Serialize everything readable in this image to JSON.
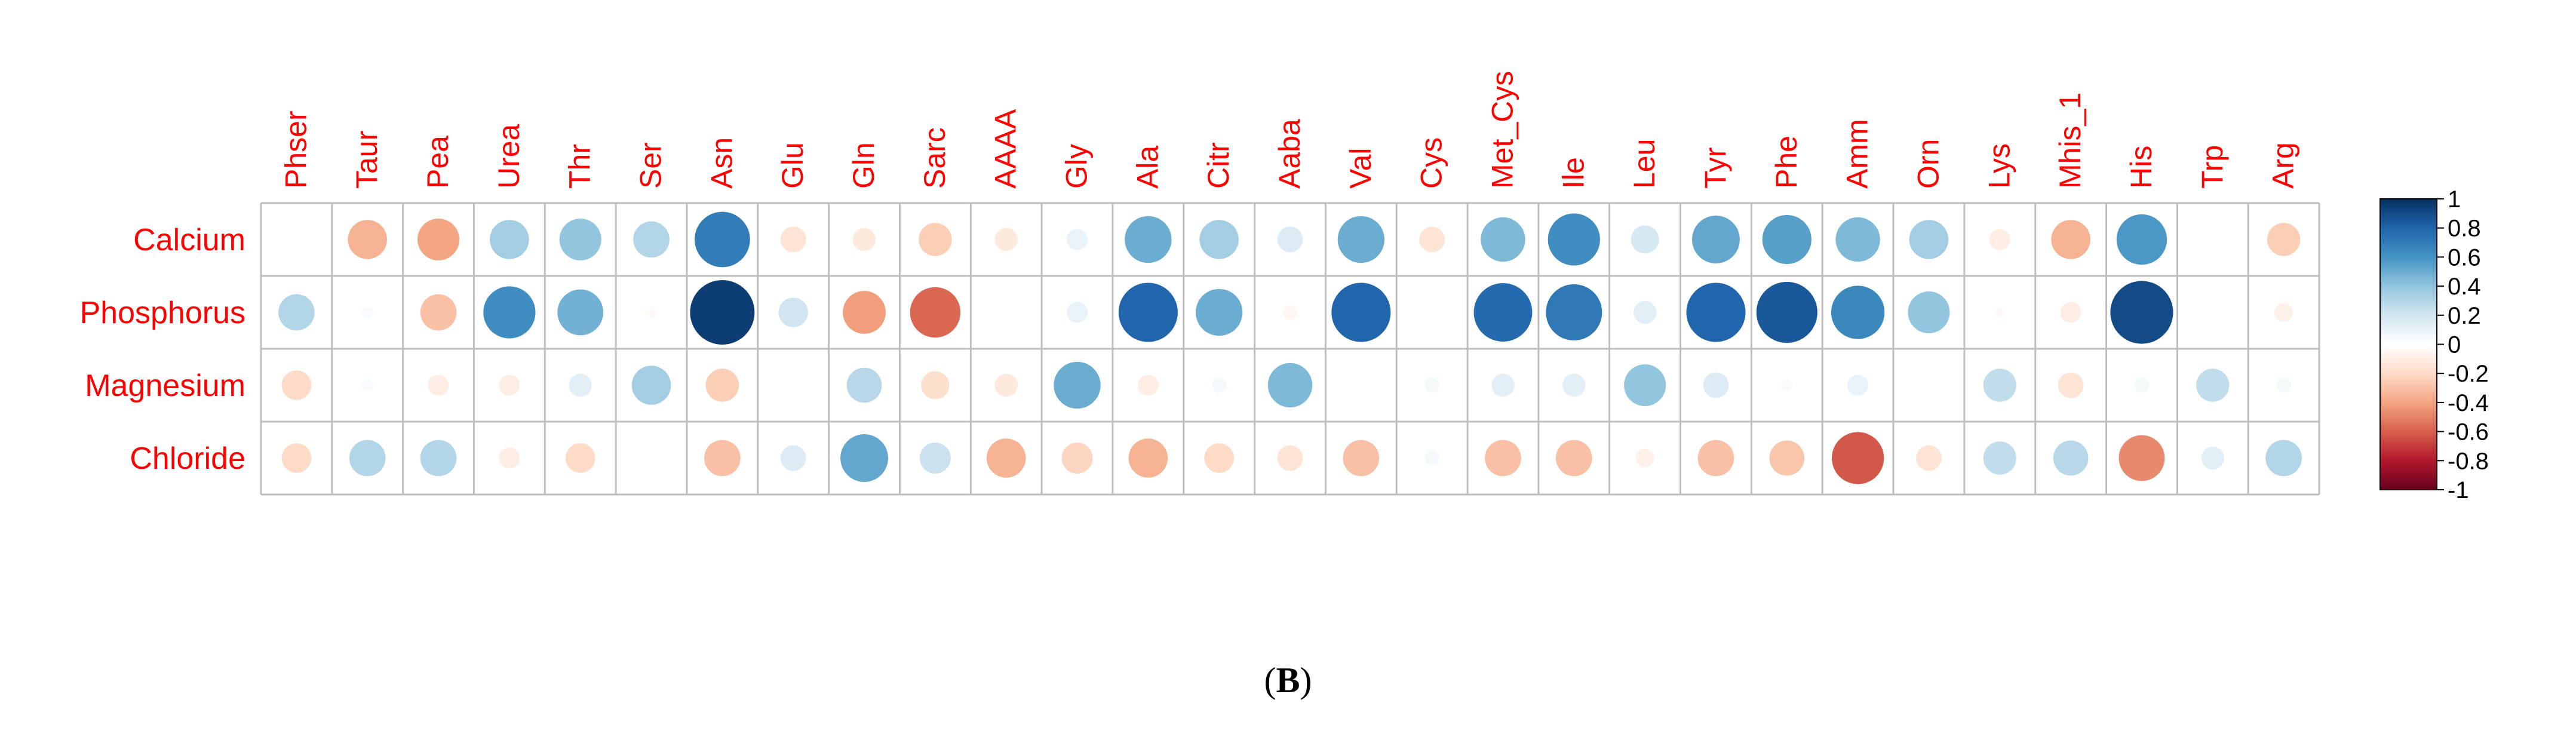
{
  "panel_label": {
    "open": "(",
    "letter": "B",
    "close": ")"
  },
  "chart_data": {
    "type": "heatmap",
    "columns": [
      "Phser",
      "Taur",
      "Pea",
      "Urea",
      "Thr",
      "Ser",
      "Asn",
      "Glu",
      "Gln",
      "Sarc",
      "AAAA",
      "Gly",
      "Ala",
      "Citr",
      "Aaba",
      "Val",
      "Cys",
      "Met_Cys",
      "Ile",
      "Leu",
      "Tyr",
      "Phe",
      "Amm",
      "Orn",
      "Lys",
      "Mhis_1",
      "His",
      "Trp",
      "Arg"
    ],
    "rows": [
      "Calcium",
      "Phosphorus",
      "Magnesium",
      "Chloride"
    ],
    "values": [
      [
        0.0,
        -0.35,
        -0.4,
        0.35,
        0.4,
        0.3,
        0.7,
        -0.15,
        -0.12,
        -0.25,
        -0.12,
        0.1,
        0.5,
        0.35,
        0.15,
        0.5,
        -0.15,
        0.45,
        0.62,
        0.18,
        0.52,
        0.55,
        0.45,
        0.35,
        -0.1,
        -0.35,
        0.58,
        0.0,
        -0.25
      ],
      [
        0.3,
        0.03,
        -0.3,
        0.62,
        0.48,
        -0.03,
        0.95,
        0.2,
        -0.42,
        -0.58,
        0.0,
        0.1,
        0.8,
        0.5,
        -0.05,
        0.8,
        0.0,
        0.78,
        0.72,
        0.12,
        0.8,
        0.85,
        0.65,
        0.4,
        -0.03,
        -0.1,
        0.9,
        0.0,
        -0.08
      ],
      [
        -0.2,
        0.03,
        -0.1,
        -0.1,
        0.12,
        0.35,
        -0.25,
        0.0,
        0.28,
        -0.18,
        -0.12,
        0.5,
        -0.1,
        0.05,
        0.45,
        0.0,
        0.05,
        0.12,
        0.12,
        0.4,
        0.15,
        0.03,
        0.1,
        0.0,
        0.25,
        -0.15,
        0.05,
        0.25,
        0.05
      ],
      [
        -0.2,
        0.3,
        0.3,
        -0.1,
        -0.2,
        0.0,
        -0.3,
        0.15,
        0.52,
        0.22,
        -0.35,
        -0.22,
        -0.35,
        -0.2,
        -0.15,
        -0.3,
        0.05,
        -0.3,
        -0.3,
        -0.08,
        -0.3,
        -0.28,
        -0.62,
        -0.15,
        0.25,
        0.28,
        -0.48,
        0.12,
        0.3
      ]
    ],
    "color_scale": {
      "min": -1,
      "max": 1,
      "ticks": [
        "1",
        "0.8",
        "0.6",
        "0.4",
        "0.2",
        "0",
        "-0.2",
        "-0.4",
        "-0.6",
        "-0.8",
        "-1"
      ],
      "stops": [
        "#67001F",
        "#B2182B",
        "#D6604D",
        "#F4A582",
        "#FDDBC7",
        "#FFFFFF",
        "#D1E5F0",
        "#92C5DE",
        "#4393C3",
        "#2166AC",
        "#053061"
      ]
    },
    "label_color": "#FF0000",
    "grid_color": "#BEBEBE",
    "grid": true,
    "legend_position": "right"
  }
}
